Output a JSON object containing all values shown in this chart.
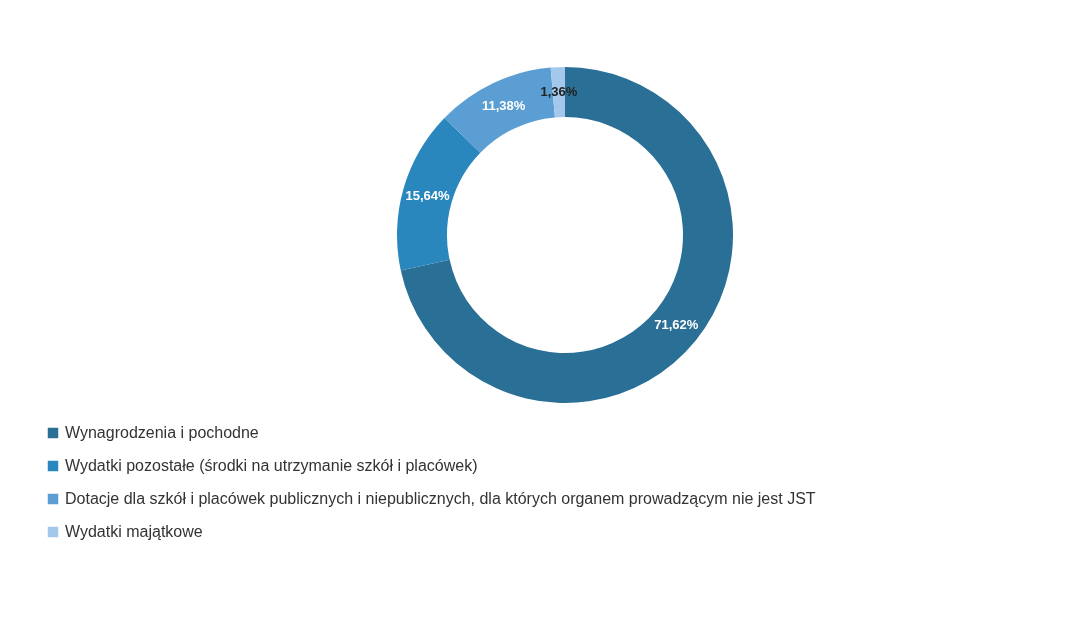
{
  "chart_data": {
    "type": "donut",
    "categories": [
      "Wynagrodzenia i pochodne",
      "Wydatki pozostałe (środki na utrzymanie szkół i placówek)",
      "Dotacje dla szkół i placówek publicznych i niepublicznych, dla których organem prowadzącym nie jest JST",
      "Wydatki majątkowe"
    ],
    "values": [
      71.62,
      15.64,
      11.38,
      1.36
    ],
    "value_labels": [
      "71,62%",
      "15,64%",
      "11,38%",
      "1,36%"
    ],
    "colors": [
      "#2a6f96",
      "#2a87bd",
      "#5a9ed3",
      "#a4c8ec"
    ],
    "legend": "bottom left"
  }
}
